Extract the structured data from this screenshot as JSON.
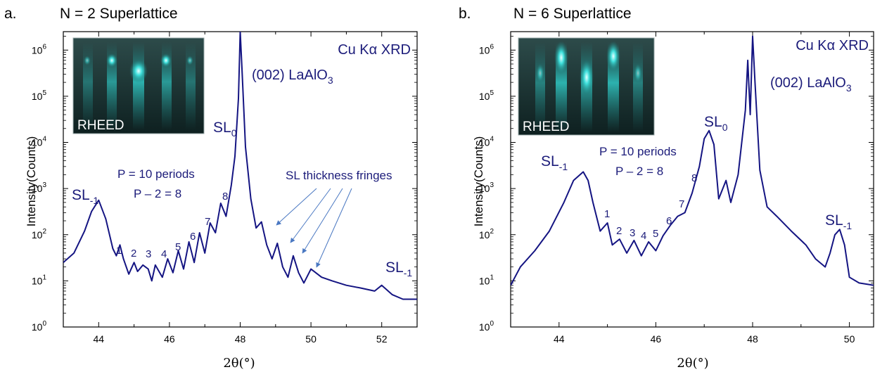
{
  "chart_data": [
    {
      "type": "line",
      "panel_letter": "a.",
      "title": "N = 2 Superlattice",
      "xlabel": "2θ(°)",
      "ylabel": "Intensity(Counts)",
      "xlim": [
        43.0,
        53.0
      ],
      "ylim_log10": [
        0,
        6.4
      ],
      "yscale": "log",
      "xticks": [
        44,
        46,
        48,
        50,
        52
      ],
      "yticks_exp": [
        0,
        1,
        2,
        3,
        4,
        5,
        6
      ],
      "line_color": "#141482",
      "inset_label": "RHEED",
      "annotations": {
        "source": "Cu Kα XRD",
        "substrate": "(002) LaAlO",
        "substrate_sub": "3",
        "sl0": "SL",
        "sl0_sub": "0",
        "sl_left": "SL",
        "sl_left_sub": "-1",
        "sl_right": "SL",
        "sl_right_sub": "-1",
        "periods": "P = 10 periods",
        "fringe_count": "P – 2 = 8",
        "fringes_note": "SL thickness fringes",
        "fringe_labels": [
          "1",
          "2",
          "3",
          "4",
          "5",
          "6",
          "7",
          "8"
        ]
      },
      "series": [
        {
          "x": [
            43.0,
            43.3,
            43.6,
            43.8,
            44.0,
            44.2,
            44.4,
            44.5,
            44.6,
            44.7,
            44.85,
            45.0,
            45.1,
            45.25,
            45.4,
            45.5,
            45.6,
            45.8,
            45.95,
            46.1,
            46.25,
            46.4,
            46.55,
            46.7,
            46.85,
            47.0,
            47.15,
            47.3,
            47.45,
            47.6,
            47.75,
            47.85,
            47.95,
            48.0,
            48.05,
            48.15,
            48.3,
            48.45,
            48.6,
            48.75,
            48.9,
            49.05,
            49.2,
            49.35,
            49.5,
            49.65,
            49.8,
            50.0,
            50.3,
            50.6,
            51.0,
            51.4,
            51.8,
            52.0,
            52.3,
            52.6,
            53.0
          ],
          "y": [
            25,
            40,
            120,
            320,
            560,
            220,
            50,
            35,
            60,
            30,
            14,
            25,
            16,
            22,
            18,
            10,
            22,
            12,
            30,
            15,
            45,
            18,
            70,
            25,
            110,
            40,
            180,
            110,
            480,
            250,
            1200,
            5000,
            90000,
            2500000,
            400000,
            8000,
            600,
            140,
            190,
            60,
            30,
            65,
            20,
            12,
            35,
            15,
            9,
            18,
            12,
            10,
            8,
            7,
            6,
            8,
            5,
            4,
            4
          ]
        }
      ]
    },
    {
      "type": "line",
      "panel_letter": "b.",
      "title": "N = 6 Superlattice",
      "xlabel": "2θ(°)",
      "ylabel": "Intensity(Counts)",
      "xlim": [
        43.0,
        50.5
      ],
      "ylim_log10": [
        0,
        6.4
      ],
      "yscale": "log",
      "xticks": [
        44,
        46,
        48,
        50
      ],
      "yticks_exp": [
        0,
        1,
        2,
        3,
        4,
        5,
        6
      ],
      "line_color": "#141482",
      "inset_label": "RHEED",
      "annotations": {
        "source": "Cu Kα XRD",
        "substrate": "(002) LaAlO",
        "substrate_sub": "3",
        "sl0": "SL",
        "sl0_sub": "0",
        "sl_left": "SL",
        "sl_left_sub": "-1",
        "sl_right": "SL",
        "sl_right_sub": "-1",
        "periods": "P = 10 periods",
        "fringe_count": "P – 2 = 8",
        "fringe_labels": [
          "1",
          "2",
          "3",
          "4",
          "5",
          "6",
          "7",
          "8"
        ]
      },
      "series": [
        {
          "x": [
            43.0,
            43.2,
            43.5,
            43.8,
            44.1,
            44.3,
            44.5,
            44.6,
            44.7,
            44.85,
            45.0,
            45.1,
            45.25,
            45.4,
            45.55,
            45.7,
            45.85,
            46.0,
            46.15,
            46.3,
            46.45,
            46.6,
            46.75,
            46.9,
            47.0,
            47.1,
            47.2,
            47.3,
            47.45,
            47.55,
            47.7,
            47.85,
            47.9,
            47.95,
            48.0,
            48.05,
            48.15,
            48.3,
            48.5,
            48.8,
            49.1,
            49.3,
            49.5,
            49.6,
            49.7,
            49.8,
            49.9,
            50.0,
            50.2,
            50.5
          ],
          "y": [
            8,
            20,
            45,
            120,
            500,
            1500,
            2300,
            1500,
            500,
            120,
            180,
            60,
            80,
            40,
            75,
            35,
            70,
            45,
            95,
            160,
            250,
            300,
            800,
            3000,
            12000,
            18000,
            9000,
            600,
            1500,
            500,
            2000,
            50000,
            600000,
            40000,
            2000000,
            200000,
            2500,
            400,
            250,
            120,
            60,
            30,
            20,
            40,
            100,
            130,
            60,
            12,
            9,
            8
          ]
        }
      ]
    }
  ]
}
